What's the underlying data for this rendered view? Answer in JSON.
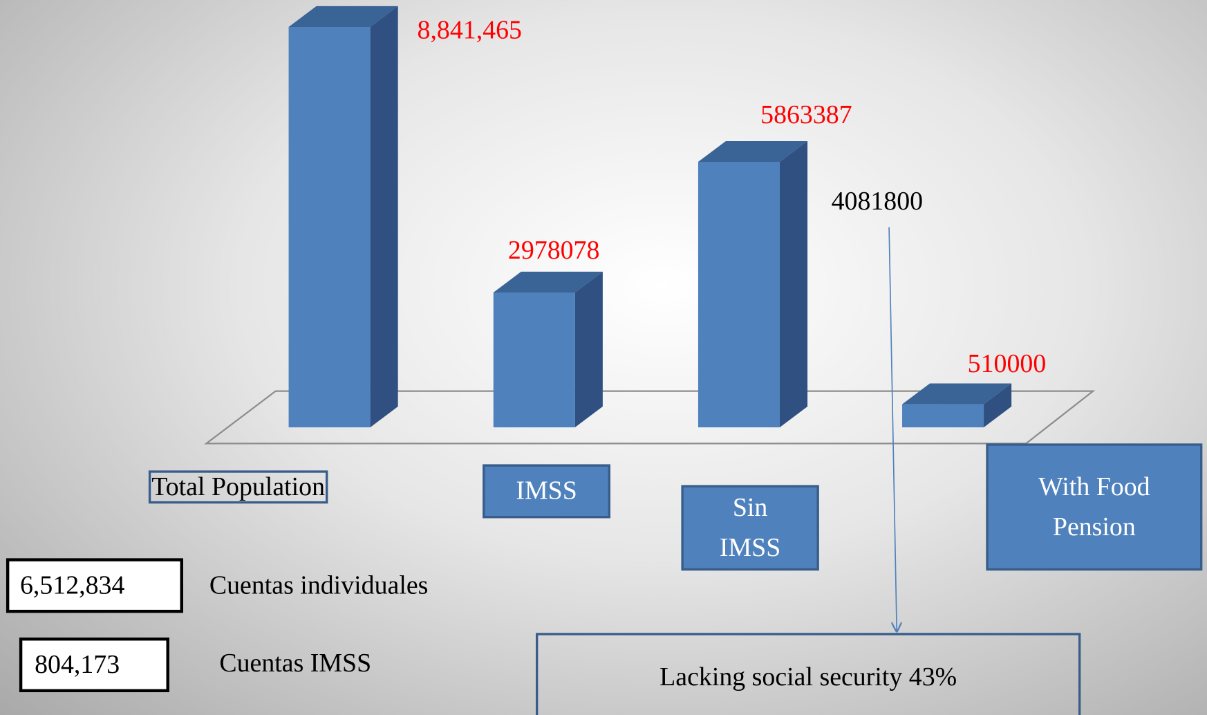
{
  "chart_data": {
    "type": "bar3d",
    "categories": [
      "Total Population",
      "IMSS",
      "Sin IMSS",
      "With Food Pension"
    ],
    "values": [
      8841465,
      2978078,
      5863387,
      510000
    ],
    "value_labels": [
      "8,841,465",
      "2978078",
      "5863387",
      "510000"
    ],
    "color": "#4f81bd",
    "value_label_color": "#ff0000",
    "annotations": [
      "4081800",
      "Lacking social security 43%"
    ],
    "accounts": [
      {
        "value": 6512834,
        "label": "6,512,834",
        "name": "Cuentas individuales"
      },
      {
        "value": 804173,
        "label": "804,173",
        "name": "Cuentas IMSS"
      }
    ]
  }
}
